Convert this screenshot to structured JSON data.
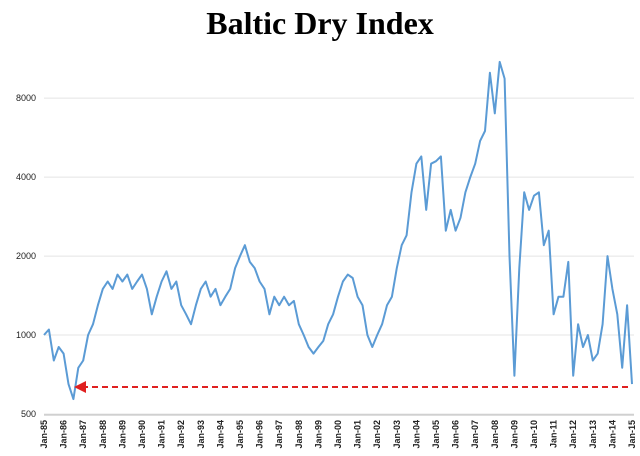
{
  "chart_data": {
    "type": "line",
    "title": "Baltic Dry Index",
    "categories": [
      "Jan-85",
      null,
      null,
      null,
      "Jan-86",
      null,
      null,
      null,
      "Jan-87",
      null,
      null,
      null,
      "Jan-88",
      null,
      null,
      null,
      "Jan-89",
      null,
      null,
      null,
      "Jan-90",
      null,
      null,
      null,
      "Jan-91",
      null,
      null,
      null,
      "Jan-92",
      null,
      null,
      null,
      "Jan-93",
      null,
      null,
      null,
      "Jan-94",
      null,
      null,
      null,
      "Jan-95",
      null,
      null,
      null,
      "Jan-96",
      null,
      null,
      null,
      "Jan-97",
      null,
      null,
      null,
      "Jan-98",
      null,
      null,
      null,
      "Jan-99",
      null,
      null,
      null,
      "Jan-00",
      null,
      null,
      null,
      "Jan-01",
      null,
      null,
      null,
      "Jan-02",
      null,
      null,
      null,
      "Jan-03",
      null,
      null,
      null,
      "Jan-04",
      null,
      null,
      null,
      "Jan-05",
      null,
      null,
      null,
      "Jan-06",
      null,
      null,
      null,
      "Jan-07",
      null,
      null,
      null,
      "Jan-08",
      null,
      null,
      null,
      "Jan-09",
      null,
      null,
      null,
      "Jan-10",
      null,
      null,
      null,
      "Jan-11",
      null,
      null,
      null,
      "Jan-12",
      null,
      null,
      null,
      "Jan-13",
      null,
      null,
      null,
      "Jan-14",
      null,
      null,
      null,
      "Jan-15"
    ],
    "series": [
      {
        "color": "#5b9bd5",
        "values": [
          1000,
          1050,
          800,
          900,
          850,
          650,
          570,
          750,
          800,
          1000,
          1100,
          1300,
          1500,
          1600,
          1500,
          1700,
          1600,
          1700,
          1500,
          1600,
          1700,
          1500,
          1200,
          1400,
          1600,
          1750,
          1500,
          1600,
          1300,
          1200,
          1100,
          1300,
          1500,
          1600,
          1400,
          1500,
          1300,
          1400,
          1500,
          1800,
          2000,
          2200,
          1900,
          1800,
          1600,
          1500,
          1200,
          1400,
          1300,
          1400,
          1300,
          1350,
          1100,
          1000,
          900,
          850,
          900,
          950,
          1100,
          1200,
          1400,
          1600,
          1700,
          1650,
          1400,
          1300,
          1000,
          900,
          1000,
          1100,
          1300,
          1400,
          1800,
          2200,
          2400,
          3500,
          4500,
          4800,
          3000,
          4500,
          4600,
          4800,
          2500,
          3000,
          2500,
          2800,
          3500,
          4000,
          4500,
          5500,
          6000,
          10000,
          7000,
          11000,
          9500,
          2000,
          700,
          1800,
          3500,
          3000,
          3400,
          3500,
          2200,
          2500,
          1200,
          1400,
          1400,
          1900,
          700,
          1100,
          900,
          1000,
          800,
          850,
          1100,
          2000,
          1500,
          1200,
          750,
          1300,
          650
        ]
      }
    ],
    "ylim": [
      500,
      12000
    ],
    "yticks": [
      500,
      1000,
      2000,
      4000,
      8000
    ],
    "log_scale": true,
    "grid": true
  }
}
